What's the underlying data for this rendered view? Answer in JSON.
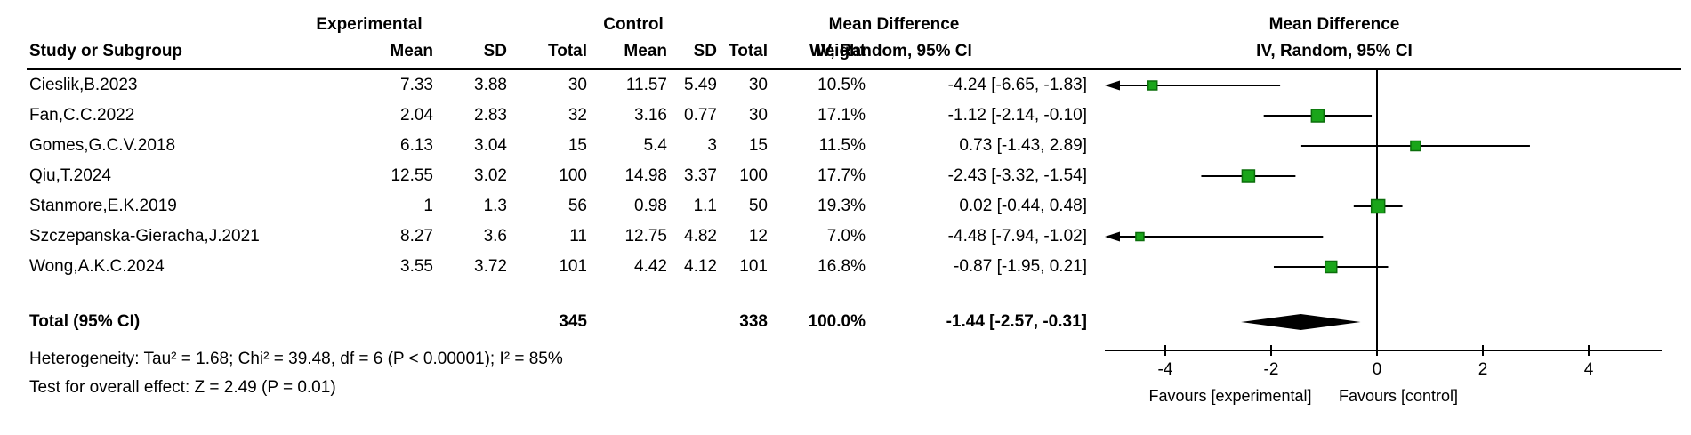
{
  "chart_data": {
    "type": "forest",
    "headers": {
      "study": "Study or Subgroup",
      "group_experimental": "Experimental",
      "group_control": "Control",
      "mean": "Mean",
      "sd": "SD",
      "total": "Total",
      "weight": "Weight",
      "md_title": "Mean Difference",
      "md_subtitle": "IV, Random, 95% CI"
    },
    "studies": [
      {
        "name": "Cieslik,B.2023",
        "exp_mean": "7.33",
        "exp_sd": "3.88",
        "exp_total": "30",
        "ctl_mean": "11.57",
        "ctl_sd": "5.49",
        "ctl_total": "30",
        "weight": "10.5%",
        "ci_text": "-4.24 [-6.65, -1.83]",
        "md": -4.24,
        "lcl": -6.65,
        "ucl": -1.83,
        "weight_pct": 10.5
      },
      {
        "name": "Fan,C.C.2022",
        "exp_mean": "2.04",
        "exp_sd": "2.83",
        "exp_total": "32",
        "ctl_mean": "3.16",
        "ctl_sd": "0.77",
        "ctl_total": "30",
        "weight": "17.1%",
        "ci_text": "-1.12 [-2.14, -0.10]",
        "md": -1.12,
        "lcl": -2.14,
        "ucl": -0.1,
        "weight_pct": 17.1
      },
      {
        "name": "Gomes,G.C.V.2018",
        "exp_mean": "6.13",
        "exp_sd": "3.04",
        "exp_total": "15",
        "ctl_mean": "5.4",
        "ctl_sd": "3",
        "ctl_total": "15",
        "weight": "11.5%",
        "ci_text": "0.73 [-1.43, 2.89]",
        "md": 0.73,
        "lcl": -1.43,
        "ucl": 2.89,
        "weight_pct": 11.5
      },
      {
        "name": "Qiu,T.2024",
        "exp_mean": "12.55",
        "exp_sd": "3.02",
        "exp_total": "100",
        "ctl_mean": "14.98",
        "ctl_sd": "3.37",
        "ctl_total": "100",
        "weight": "17.7%",
        "ci_text": "-2.43 [-3.32, -1.54]",
        "md": -2.43,
        "lcl": -3.32,
        "ucl": -1.54,
        "weight_pct": 17.7
      },
      {
        "name": "Stanmore,E.K.2019",
        "exp_mean": "1",
        "exp_sd": "1.3",
        "exp_total": "56",
        "ctl_mean": "0.98",
        "ctl_sd": "1.1",
        "ctl_total": "50",
        "weight": "19.3%",
        "ci_text": "0.02 [-0.44, 0.48]",
        "md": 0.02,
        "lcl": -0.44,
        "ucl": 0.48,
        "weight_pct": 19.3
      },
      {
        "name": "Szczepanska-Gieracha,J.2021",
        "exp_mean": "8.27",
        "exp_sd": "3.6",
        "exp_total": "11",
        "ctl_mean": "12.75",
        "ctl_sd": "4.82",
        "ctl_total": "12",
        "weight": "7.0%",
        "ci_text": "-4.48 [-7.94, -1.02]",
        "md": -4.48,
        "lcl": -7.94,
        "ucl": -1.02,
        "weight_pct": 7.0
      },
      {
        "name": "Wong,A.K.C.2024",
        "exp_mean": "3.55",
        "exp_sd": "3.72",
        "exp_total": "101",
        "ctl_mean": "4.42",
        "ctl_sd": "4.12",
        "ctl_total": "101",
        "weight": "16.8%",
        "ci_text": "-0.87 [-1.95, 0.21]",
        "md": -0.87,
        "lcl": -1.95,
        "ucl": 0.21,
        "weight_pct": 16.8
      }
    ],
    "total": {
      "label": "Total (95% CI)",
      "exp_total": "345",
      "ctl_total": "338",
      "weight": "100.0%",
      "ci_text": "-1.44 [-2.57, -0.31]",
      "md": -1.44,
      "lcl": -2.57,
      "ucl": -0.31
    },
    "footnotes": {
      "heterogeneity": "Heterogeneity: Tau² = 1.68; Chi² = 39.48, df = 6 (P < 0.00001); I² = 85%",
      "overall_effect": "Test for overall effect: Z = 2.49 (P = 0.01)"
    },
    "axis": {
      "ticks": [
        -4,
        -2,
        0,
        2,
        4
      ],
      "min": -5.1,
      "max": 5.35,
      "favours_left": "Favours [experimental]",
      "favours_right": "Favours [control]"
    },
    "colors": {
      "square": "#1aa51a",
      "square_border": "#0b6e0b",
      "diamond": "#000000",
      "line": "#000000"
    }
  }
}
